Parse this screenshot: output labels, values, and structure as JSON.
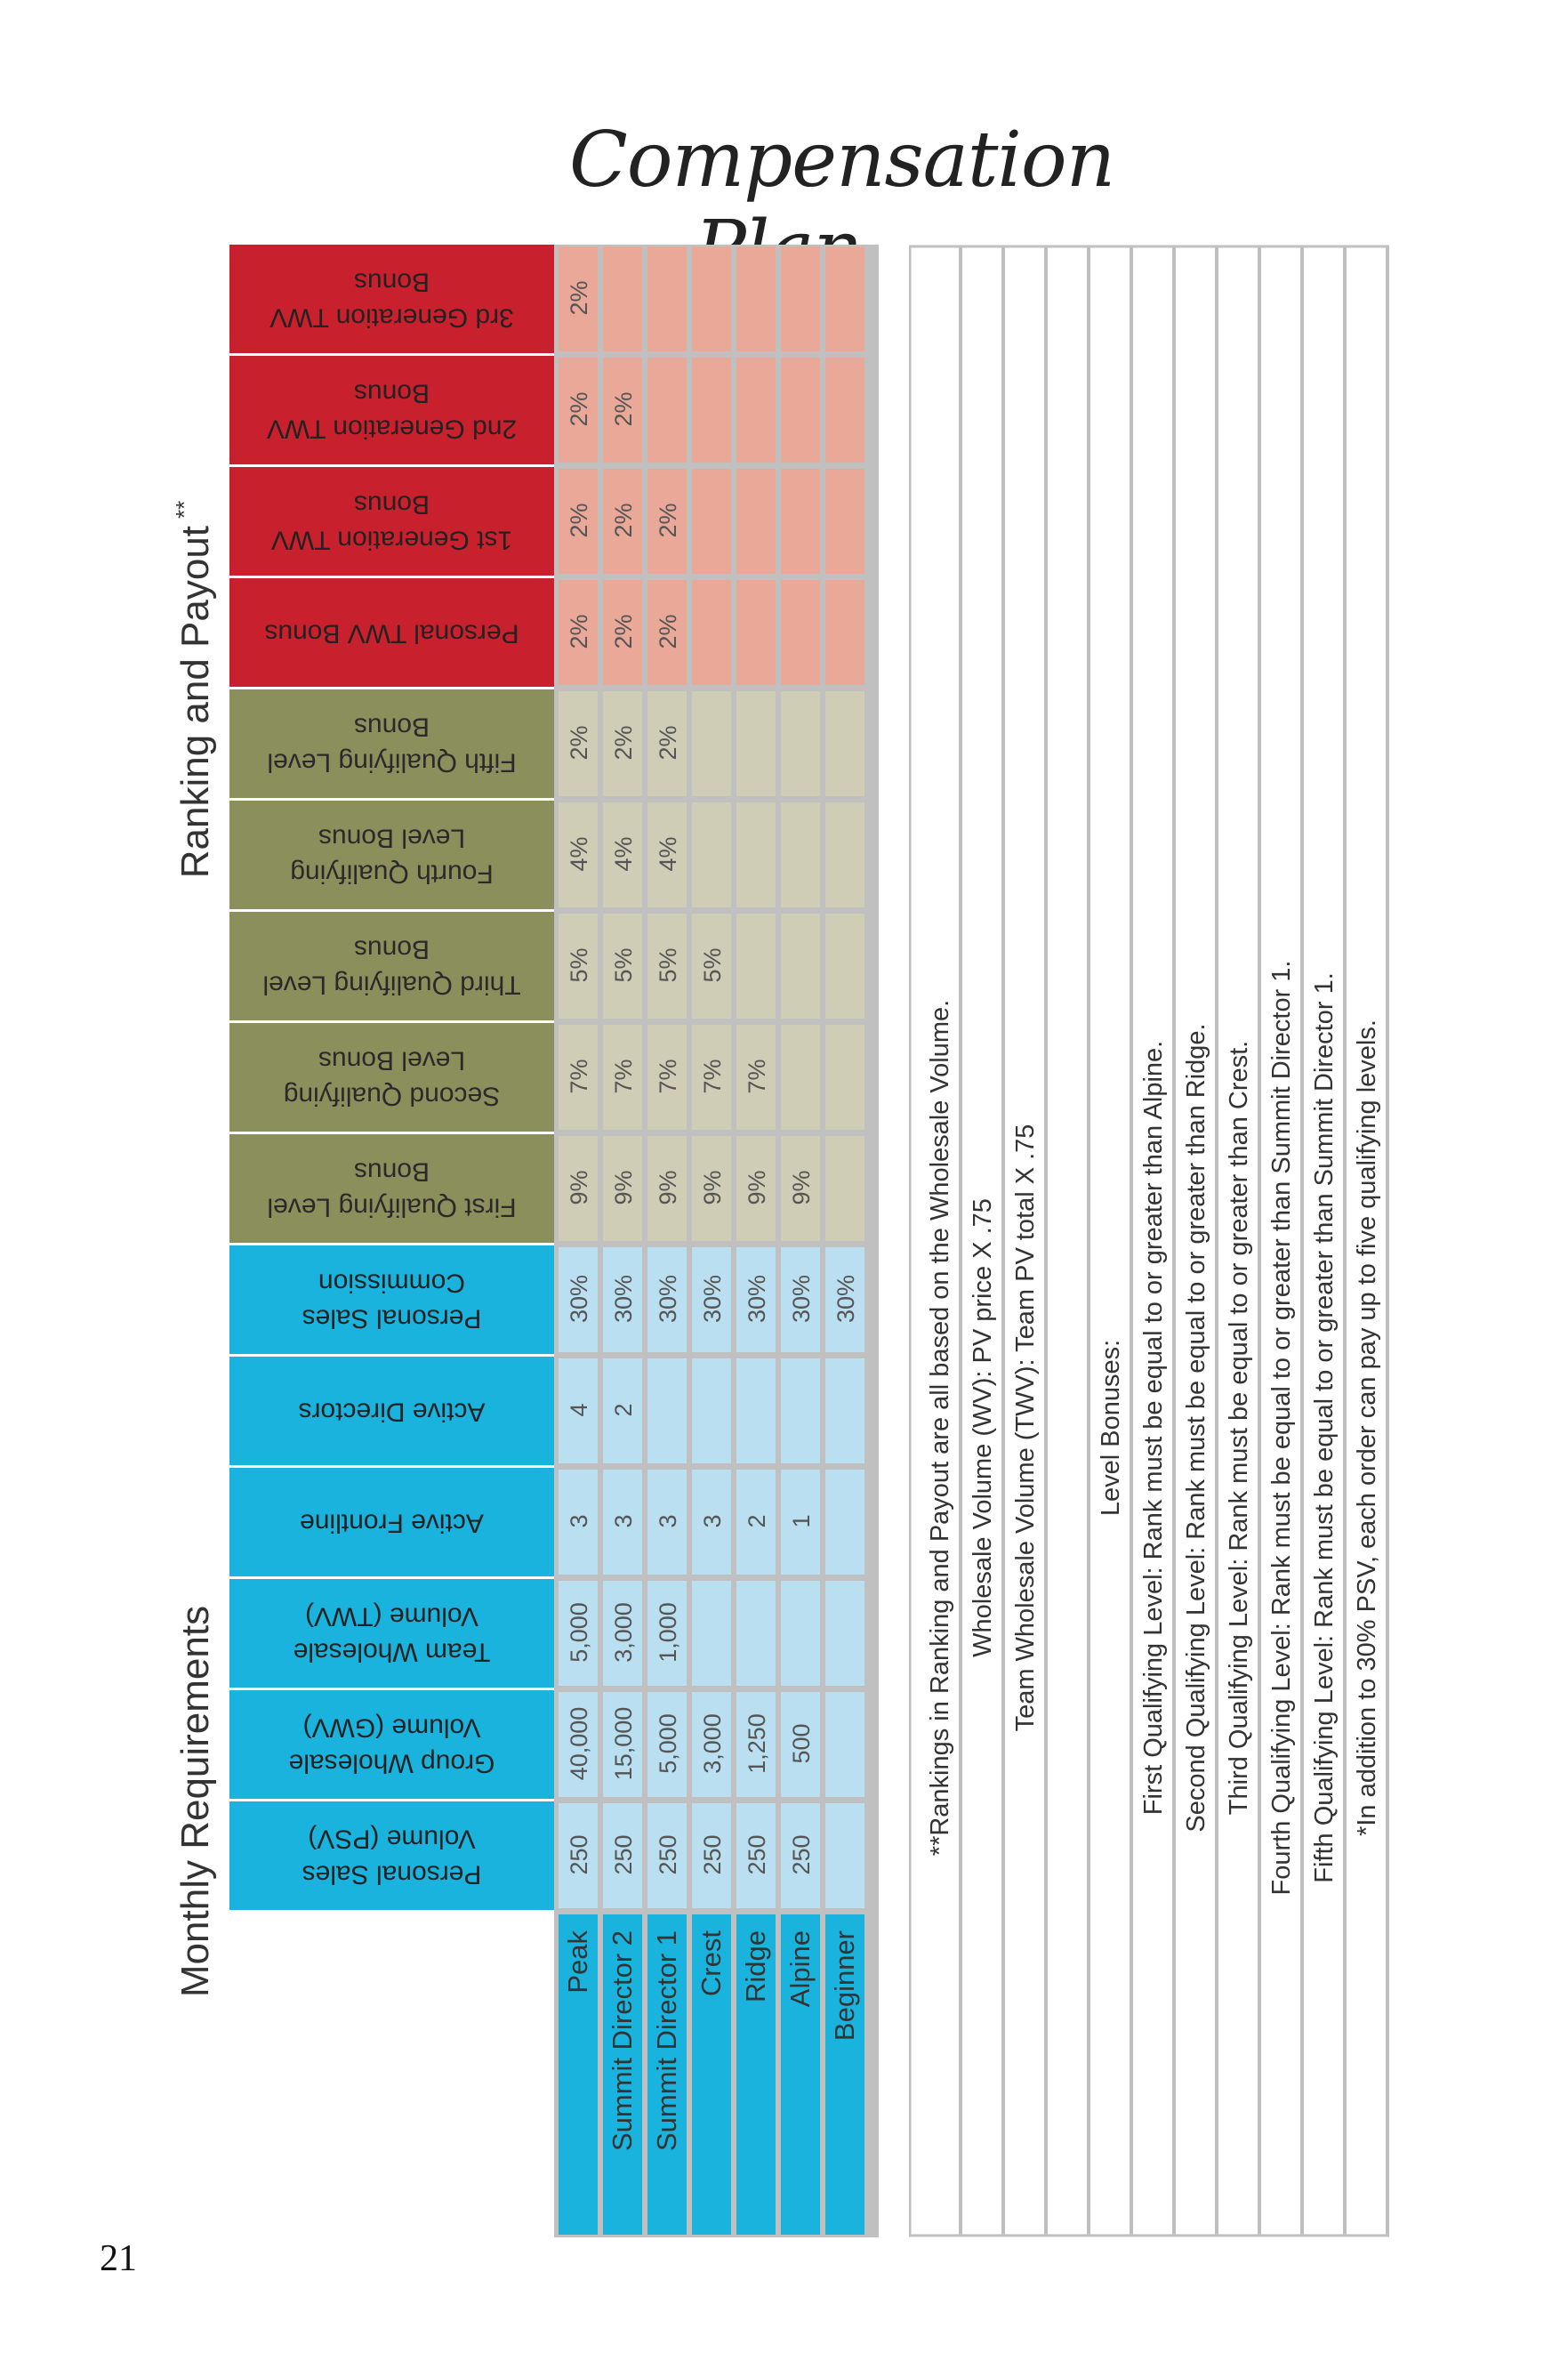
{
  "page": {
    "title": "Compensation Plan",
    "page_number": "21"
  },
  "headings": {
    "monthly": "Monthly Requirements",
    "ranking": "Ranking and Payout",
    "ranking_mark": "**"
  },
  "colors": {
    "blue_header": "#19b3dd",
    "blue_cell": "#b9dff0",
    "olive_header": "#8b8f5c",
    "olive_cell": "#cfcdb5",
    "red_header": "#c8202d",
    "red_cell": "#e9a898",
    "grid": "#c0c0c0"
  },
  "columns": [
    {
      "key": "psv",
      "group": "blue",
      "lines": [
        "Personal Sales",
        "Volume (PSV)"
      ]
    },
    {
      "key": "gwv",
      "group": "blue",
      "lines": [
        "Group Wholesale",
        "Volume (GWV)"
      ]
    },
    {
      "key": "twv",
      "group": "blue",
      "lines": [
        "Team Wholesale",
        "Volume (TWV)"
      ]
    },
    {
      "key": "front",
      "group": "blue",
      "lines": [
        "Active Frontline"
      ]
    },
    {
      "key": "dirs",
      "group": "blue",
      "lines": [
        "Active Directors"
      ]
    },
    {
      "key": "psc",
      "group": "blue",
      "lines": [
        "Personal Sales",
        "Commission"
      ]
    },
    {
      "key": "l1",
      "group": "olive",
      "lines": [
        "First Qualifying Level",
        "Bonus"
      ]
    },
    {
      "key": "l2",
      "group": "olive",
      "lines": [
        "Second Qualifying",
        "Level Bonus"
      ]
    },
    {
      "key": "l3",
      "group": "olive",
      "lines": [
        "Third Qualifying Level",
        "Bonus"
      ]
    },
    {
      "key": "l4",
      "group": "olive",
      "lines": [
        "Fourth Qualifying",
        "Level Bonus"
      ]
    },
    {
      "key": "l5",
      "group": "olive",
      "lines": [
        "Fifth Qualifying Level",
        "Bonus"
      ]
    },
    {
      "key": "ptwv",
      "group": "red",
      "lines": [
        "Personal TWV Bonus"
      ]
    },
    {
      "key": "g1",
      "group": "red",
      "lines": [
        "1st Generation TWV",
        "Bonus"
      ]
    },
    {
      "key": "g2",
      "group": "red",
      "lines": [
        "2nd Generation TWV",
        "Bonus"
      ]
    },
    {
      "key": "g3",
      "group": "red",
      "lines": [
        "3rd Generation TWV",
        "Bonus"
      ]
    }
  ],
  "ranks": [
    {
      "name": "Peak",
      "values": [
        "250",
        "40,000",
        "5,000",
        "3",
        "4",
        "30%",
        "9%",
        "7%",
        "5%",
        "4%",
        "2%",
        "2%",
        "2%",
        "2%",
        "2%"
      ]
    },
    {
      "name": "Summit Director 2",
      "values": [
        "250",
        "15,000",
        "3,000",
        "3",
        "2",
        "30%",
        "9%",
        "7%",
        "5%",
        "4%",
        "2%",
        "2%",
        "2%",
        "2%",
        ""
      ]
    },
    {
      "name": "Summit Director 1",
      "values": [
        "250",
        "5,000",
        "1,000",
        "3",
        "",
        "30%",
        "9%",
        "7%",
        "5%",
        "4%",
        "2%",
        "2%",
        "2%",
        "",
        ""
      ]
    },
    {
      "name": "Crest",
      "values": [
        "250",
        "3,000",
        "",
        "3",
        "",
        "30%",
        "9%",
        "7%",
        "5%",
        "",
        "",
        "",
        "",
        "",
        ""
      ]
    },
    {
      "name": "Ridge",
      "values": [
        "250",
        "1,250",
        "",
        "2",
        "",
        "30%",
        "9%",
        "7%",
        "",
        "",
        "",
        "",
        "",
        "",
        ""
      ]
    },
    {
      "name": "Alpine",
      "values": [
        "250",
        "500",
        "",
        "1",
        "",
        "30%",
        "9%",
        "",
        "",
        "",
        "",
        "",
        "",
        "",
        ""
      ]
    },
    {
      "name": "Beginner",
      "values": [
        "",
        "",
        "",
        "",
        "",
        "30%",
        "",
        "",
        "",
        "",
        "",
        "",
        "",
        "",
        ""
      ]
    }
  ],
  "notes": [
    "**Rankings in Ranking and Payout are all based on the Wholesale Volume.",
    "Wholesale Volume (WV): PV price X .75",
    "Team Wholesale Volume (TWV): Team PV total X .75",
    "",
    "Level Bonuses:",
    "First Qualifying Level: Rank must be equal to or greater than Alpine.",
    "Second Qualifying Level: Rank must be equal to or greater than Ridge.",
    "Third Qualifying Level: Rank must be equal to or greater than Crest.",
    "Fourth Qualifying Level: Rank must be equal to or greater than Summit Director 1.",
    "Fifth Qualifying Level: Rank must be equal to or greater than Summit Director 1.",
    "*In addition to 30% PSV, each order can pay up to five qualifying levels."
  ]
}
